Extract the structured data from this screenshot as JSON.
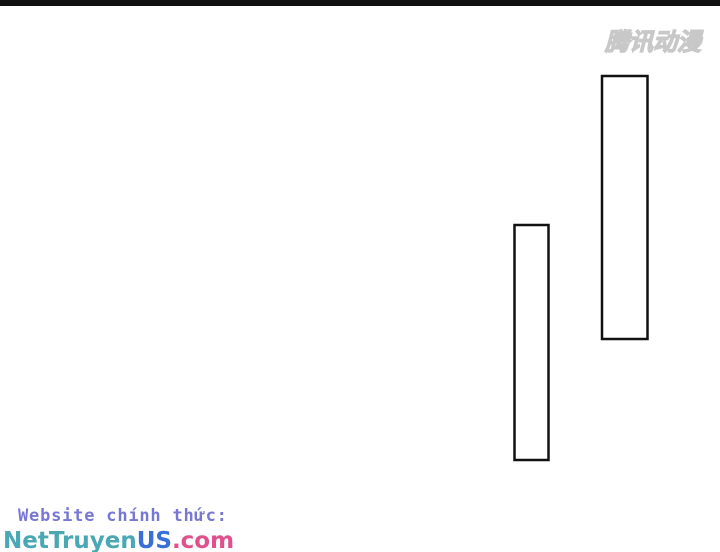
{
  "header": {
    "logo": "腾讯动漫"
  },
  "footer": {
    "label": "Website chính thức:",
    "site": [
      "NetTruyen",
      "US",
      ".com"
    ]
  }
}
